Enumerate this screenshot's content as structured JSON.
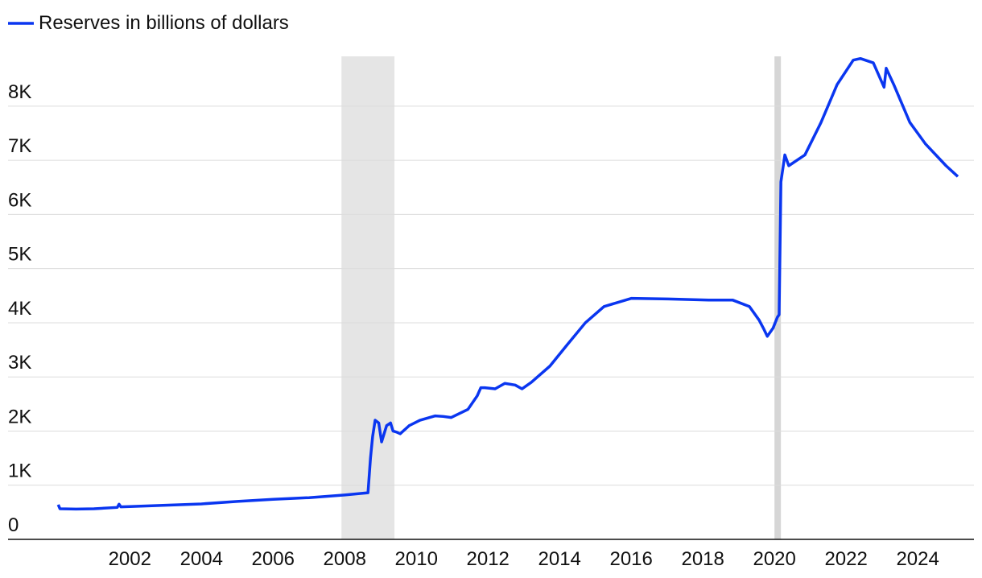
{
  "chart_data": {
    "type": "line",
    "x": [
      2000.0,
      2000.05,
      2000.5,
      2001.0,
      2001.65,
      2001.7,
      2001.75,
      2002.0,
      2003.0,
      2004.0,
      2005.0,
      2006.0,
      2007.0,
      2008.0,
      2008.65,
      2008.72,
      2008.78,
      2008.85,
      2008.95,
      2009.03,
      2009.17,
      2009.28,
      2009.35,
      2009.45,
      2009.55,
      2009.8,
      2010.1,
      2010.52,
      2010.75,
      2010.97,
      2011.44,
      2011.7,
      2011.8,
      2011.91,
      2012.2,
      2012.47,
      2012.76,
      2012.95,
      2013.21,
      2013.73,
      2014.22,
      2014.72,
      2015.24,
      2016.0,
      2017.03,
      2018.16,
      2018.83,
      2019.3,
      2019.57,
      2019.69,
      2019.8,
      2019.96,
      2020.08,
      2020.13,
      2020.18,
      2020.29,
      2020.4,
      2020.85,
      2021.3,
      2021.75,
      2022.2,
      2022.4,
      2022.76,
      2023.06,
      2023.12,
      2023.33,
      2023.78,
      2024.22,
      2024.79,
      2025.12
    ],
    "series": [
      {
        "name": "Reserves in billions of dollars",
        "color": "#0a36f0",
        "values": [
          640,
          565,
          560,
          565,
          590,
          650,
          600,
          605,
          630,
          655,
          700,
          740,
          770,
          820,
          860,
          1500,
          1900,
          2200,
          2150,
          1800,
          2100,
          2150,
          2000,
          1980,
          1950,
          2100,
          2200,
          2280,
          2270,
          2250,
          2400,
          2650,
          2800,
          2800,
          2780,
          2880,
          2850,
          2780,
          2900,
          3200,
          3600,
          4000,
          4300,
          4450,
          4440,
          4420,
          4420,
          4300,
          4050,
          3900,
          3750,
          3900,
          4100,
          4150,
          6600,
          7100,
          6900,
          7100,
          7700,
          8400,
          8850,
          8880,
          8800,
          8350,
          8700,
          8400,
          7700,
          7300,
          6900,
          6700
        ]
      }
    ],
    "shaded": [
      [
        2007.91,
        2009.39
      ],
      [
        2020.0,
        2020.18
      ]
    ],
    "xlim": [
      1998.6,
      2025.57
    ],
    "xticks": [
      2002,
      2004,
      2006,
      2008,
      2010,
      2012,
      2014,
      2016,
      2018,
      2020,
      2022,
      2024
    ],
    "ylim": [
      0,
      8920
    ],
    "yticks": [
      0,
      {
        "value": 1000,
        "label": "1K"
      },
      {
        "value": 2000,
        "label": "2K"
      },
      {
        "value": 3000,
        "label": "3K"
      },
      {
        "value": 4000,
        "label": "4K"
      },
      {
        "value": 5000,
        "label": "5K"
      },
      {
        "value": 6000,
        "label": "6K"
      },
      {
        "value": 7000,
        "label": "7K"
      },
      {
        "value": 8000,
        "label": "8K"
      }
    ],
    "grid": true
  }
}
